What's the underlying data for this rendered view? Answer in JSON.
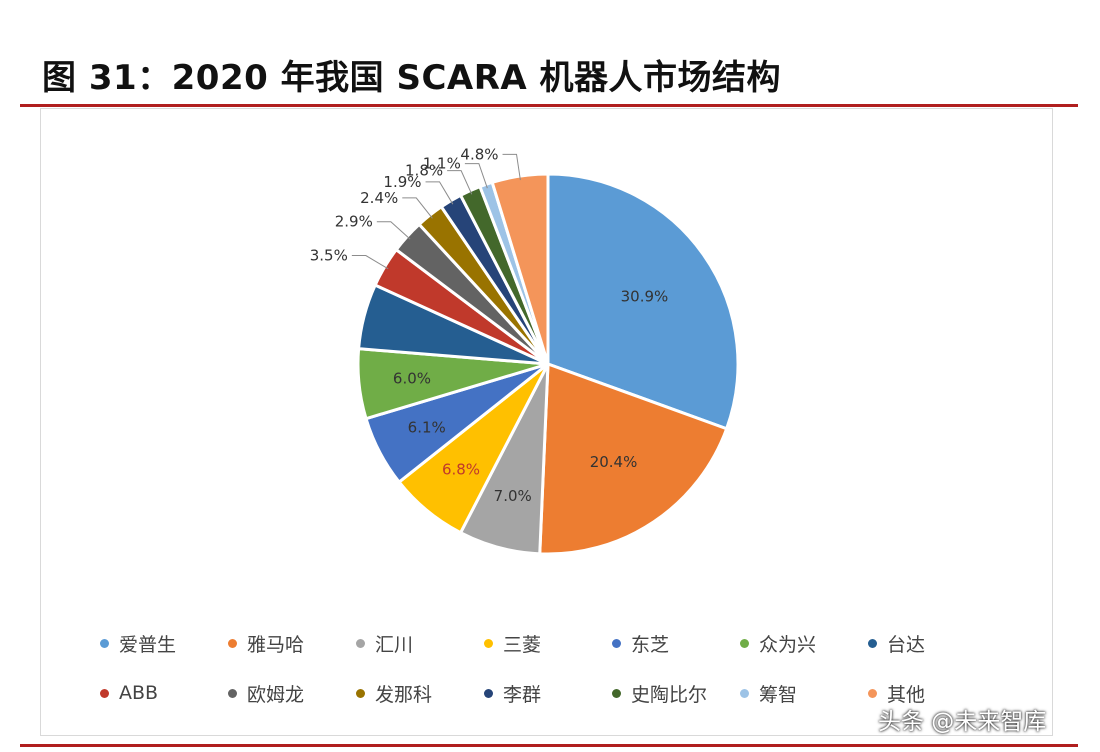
{
  "title": "图 31：2020 年我国 SCARA 机器人市场结构",
  "watermark": "头条 @未来智库",
  "chart_data": {
    "type": "pie",
    "title": "",
    "categories": [
      "爱普生",
      "雅马哈",
      "汇川",
      "三菱",
      "东芝",
      "众为兴",
      "台达",
      "ABB",
      "欧姆龙",
      "发那科",
      "李群",
      "史陶比尔",
      "筹智",
      "其他"
    ],
    "values": [
      30.9,
      20.4,
      7.0,
      6.8,
      6.1,
      6.0,
      5.6,
      3.5,
      2.9,
      2.4,
      1.9,
      1.8,
      1.1,
      4.8
    ],
    "labels": [
      "30.9%",
      "20.4%",
      "7.0%",
      "6.8%",
      "6.1%",
      "6.0%",
      "",
      "3.5%",
      "2.9%",
      "2.4%",
      "1.9%",
      "1.8%",
      "1.1%",
      "4.8%"
    ],
    "colors": [
      "#5b9bd5",
      "#ed7d31",
      "#a5a5a5",
      "#ffc000",
      "#4472c4",
      "#70ad47",
      "#255e91",
      "#c0392b",
      "#636363",
      "#997300",
      "#264478",
      "#43682b",
      "#9dc3e6",
      "#f4955a"
    ],
    "legend_position": "bottom"
  }
}
